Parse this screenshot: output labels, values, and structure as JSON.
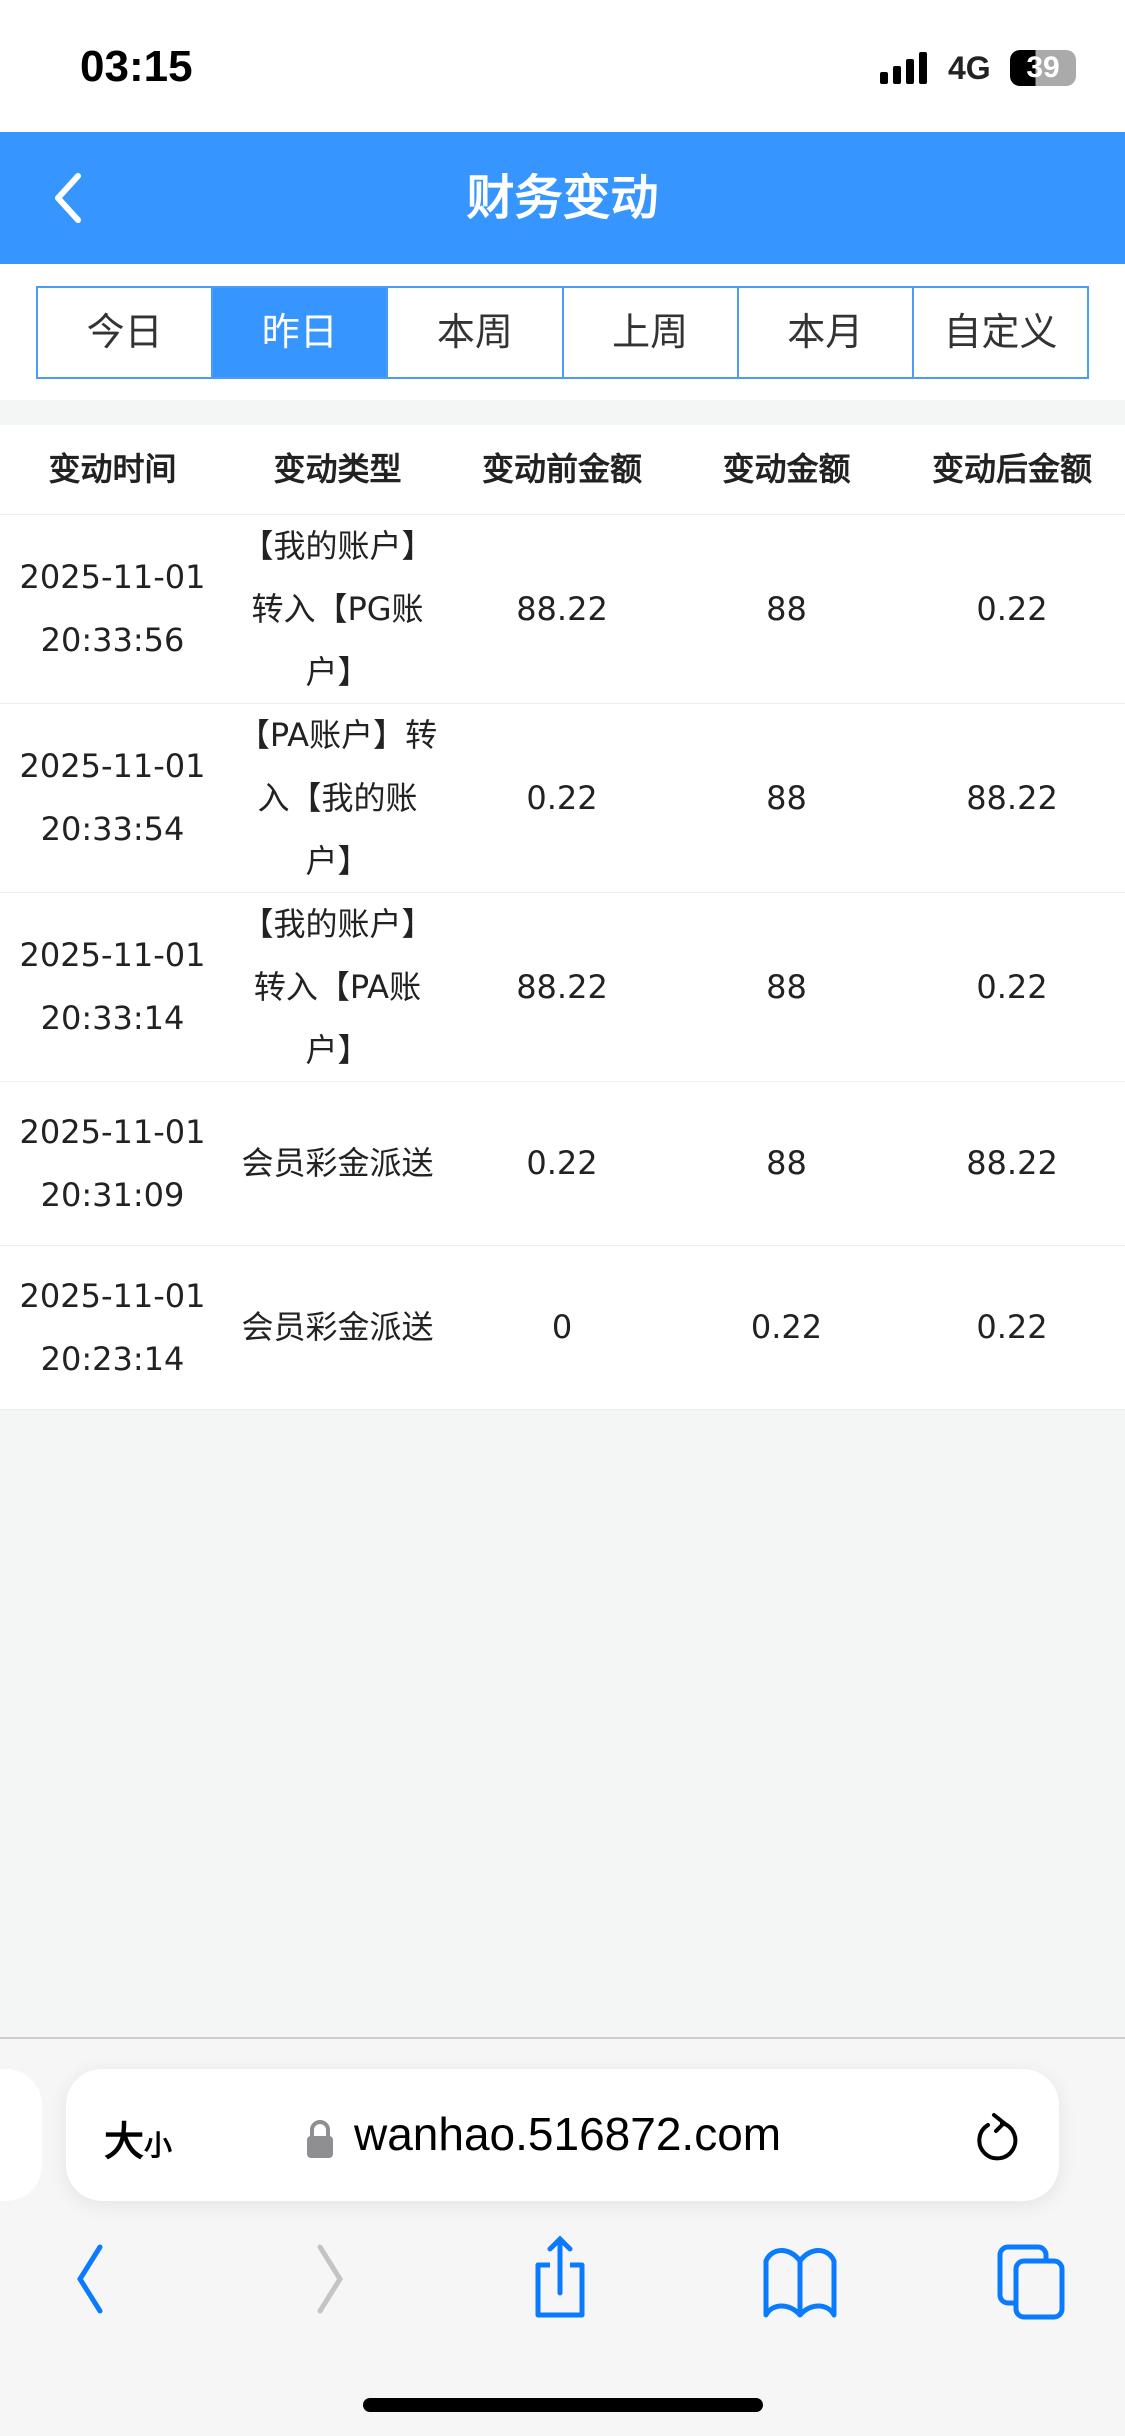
{
  "status": {
    "time": "03:15",
    "network": "4G",
    "battery": "39"
  },
  "header": {
    "title": "财务变动"
  },
  "tabs": [
    {
      "label": "今日"
    },
    {
      "label": "昨日",
      "active": true
    },
    {
      "label": "本周"
    },
    {
      "label": "上周"
    },
    {
      "label": "本月"
    },
    {
      "label": "自定义"
    }
  ],
  "table": {
    "columns": [
      "变动时间",
      "变动类型",
      "变动前金额",
      "变动金额",
      "变动后金额"
    ],
    "rows": [
      {
        "date": "2025-11-01",
        "time": "20:33:56",
        "type": "【我的账户】转入【PG账户】",
        "before": "88.22",
        "amount": "88",
        "after": "0.22"
      },
      {
        "date": "2025-11-01",
        "time": "20:33:54",
        "type": "【PA账户】转入【我的账户】",
        "before": "0.22",
        "amount": "88",
        "after": "88.22"
      },
      {
        "date": "2025-11-01",
        "time": "20:33:14",
        "type": "【我的账户】转入【PA账户】",
        "before": "88.22",
        "amount": "88",
        "after": "0.22"
      },
      {
        "date": "2025-11-01",
        "time": "20:31:09",
        "type": "会员彩金派送",
        "before": "0.22",
        "amount": "88",
        "after": "88.22"
      },
      {
        "date": "2025-11-01",
        "time": "20:23:14",
        "type": "会员彩金派送",
        "before": "0",
        "amount": "0.22",
        "after": "0.22"
      }
    ]
  },
  "browser": {
    "text_size": "大",
    "text_size_small": "小",
    "url": "wanhao.516872.com"
  },
  "colors": {
    "accent": "#3695ff",
    "ios_blue": "#0a7aff"
  }
}
